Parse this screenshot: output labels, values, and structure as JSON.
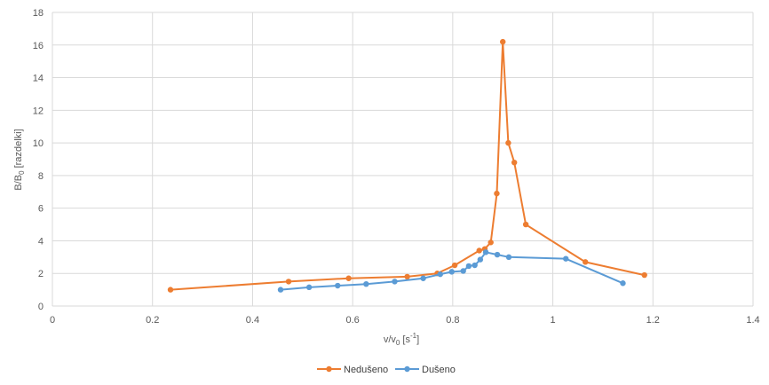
{
  "chart_data": {
    "type": "scatter",
    "xlabel": {
      "main": "v/v",
      "sub": "0",
      "mid": " [s",
      "sup": "-1",
      "end": "]"
    },
    "ylabel": {
      "main": "B/B",
      "sub": "0",
      "end": " [razdelki]"
    },
    "xlim": [
      0,
      1.4
    ],
    "ylim": [
      0,
      18
    ],
    "xticks": [
      0,
      0.2,
      0.4,
      0.6,
      0.8,
      1,
      1.2,
      1.4
    ],
    "xtick_labels": [
      "0",
      "0.2",
      "0.4",
      "0.6",
      "0.8",
      "1",
      "1.2",
      "1.4"
    ],
    "yticks": [
      0,
      2,
      4,
      6,
      8,
      10,
      12,
      14,
      16,
      18
    ],
    "ytick_labels": [
      "0",
      "2",
      "4",
      "6",
      "8",
      "10",
      "12",
      "14",
      "16",
      "18"
    ],
    "grid": true,
    "legend_position": "bottom",
    "series": [
      {
        "name": "Nedušeno",
        "color": "#ED7D31",
        "points": [
          [
            0.236,
            1.0
          ],
          [
            0.472,
            1.5
          ],
          [
            0.592,
            1.7
          ],
          [
            0.709,
            1.8
          ],
          [
            0.769,
            2.0
          ],
          [
            0.804,
            2.5
          ],
          [
            0.853,
            3.4
          ],
          [
            0.864,
            3.5
          ],
          [
            0.876,
            3.9
          ],
          [
            0.888,
            6.9
          ],
          [
            0.9,
            16.2
          ],
          [
            0.911,
            10.0
          ],
          [
            0.923,
            8.8
          ],
          [
            0.946,
            5.0
          ],
          [
            1.065,
            2.7
          ],
          [
            1.183,
            1.9
          ]
        ]
      },
      {
        "name": "Dušeno",
        "color": "#5B9BD5",
        "points": [
          [
            0.456,
            1.0
          ],
          [
            0.513,
            1.15
          ],
          [
            0.57,
            1.25
          ],
          [
            0.627,
            1.35
          ],
          [
            0.684,
            1.5
          ],
          [
            0.741,
            1.7
          ],
          [
            0.775,
            1.95
          ],
          [
            0.798,
            2.1
          ],
          [
            0.821,
            2.15
          ],
          [
            0.832,
            2.45
          ],
          [
            0.844,
            2.5
          ],
          [
            0.855,
            2.85
          ],
          [
            0.866,
            3.3
          ],
          [
            0.889,
            3.15
          ],
          [
            0.912,
            3.0
          ],
          [
            1.026,
            2.9
          ],
          [
            1.14,
            1.4
          ]
        ]
      }
    ]
  }
}
